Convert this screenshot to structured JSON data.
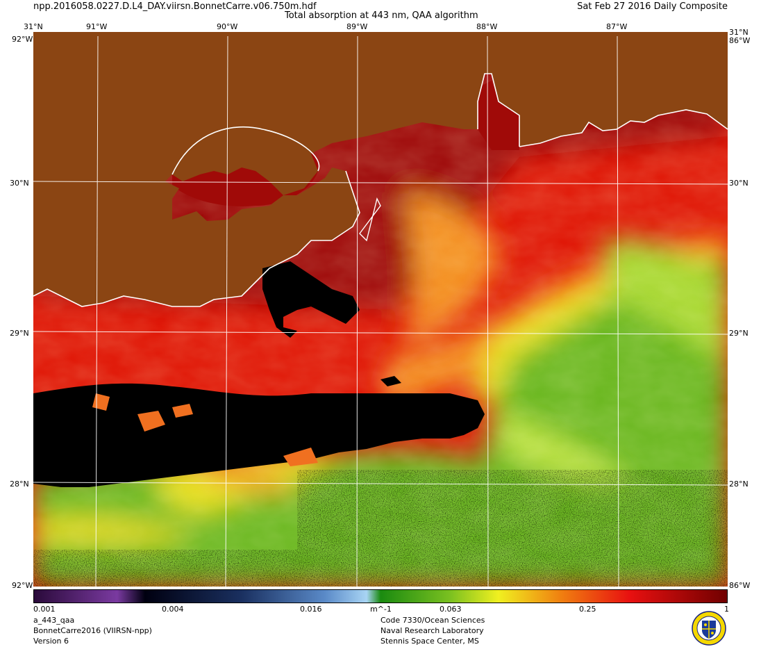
{
  "header": {
    "filename": "npp.2016058.0227.D.L4_DAY.viirsn.BonnetCarre.v06.750m.hdf",
    "title": "Total absorption at 443 nm, QAA algorithm",
    "composite": "Sat Feb 27 2016 Daily Composite"
  },
  "map": {
    "lon_labels": [
      "91°W",
      "90°W",
      "89°W",
      "88°W",
      "87°W"
    ],
    "lat_labels": [
      "30°N",
      "29°N",
      "28°N"
    ],
    "corner_top_left": "31°N",
    "corner_top_right": "31°N",
    "corner_side_top": "92°W",
    "corner_side_top_right": "86°W",
    "corner_bottom": "92°W",
    "corner_bottom_right": "86°W",
    "colors": {
      "land": "#8B4513",
      "coast": "#ffffff",
      "nodata": "#000000",
      "grid": "#ffffff"
    }
  },
  "colorbar": {
    "tick_labels": [
      "0.001",
      "0.004",
      "0.016",
      "m^-1",
      "0.063",
      "0.25",
      "1"
    ],
    "scale": "log",
    "range": [
      0.001,
      1
    ],
    "colors": [
      "#3a0a4a",
      "#6a2d8a",
      "#0a0a2a",
      "#1e3a6a",
      "#5a8ac8",
      "#a8d0f0",
      "#2a8a1a",
      "#7ac020",
      "#e8e820",
      "#f08010",
      "#e81010",
      "#800000"
    ]
  },
  "footer": {
    "product": "a_443_qaa",
    "project": "BonnetCarre2016 (VIIRSN-npp)",
    "version": "Version 6",
    "org_code": "Code 7330/Ocean Sciences",
    "org_name": "Naval Research Laboratory",
    "org_place": "Stennis Space Center, MS"
  }
}
